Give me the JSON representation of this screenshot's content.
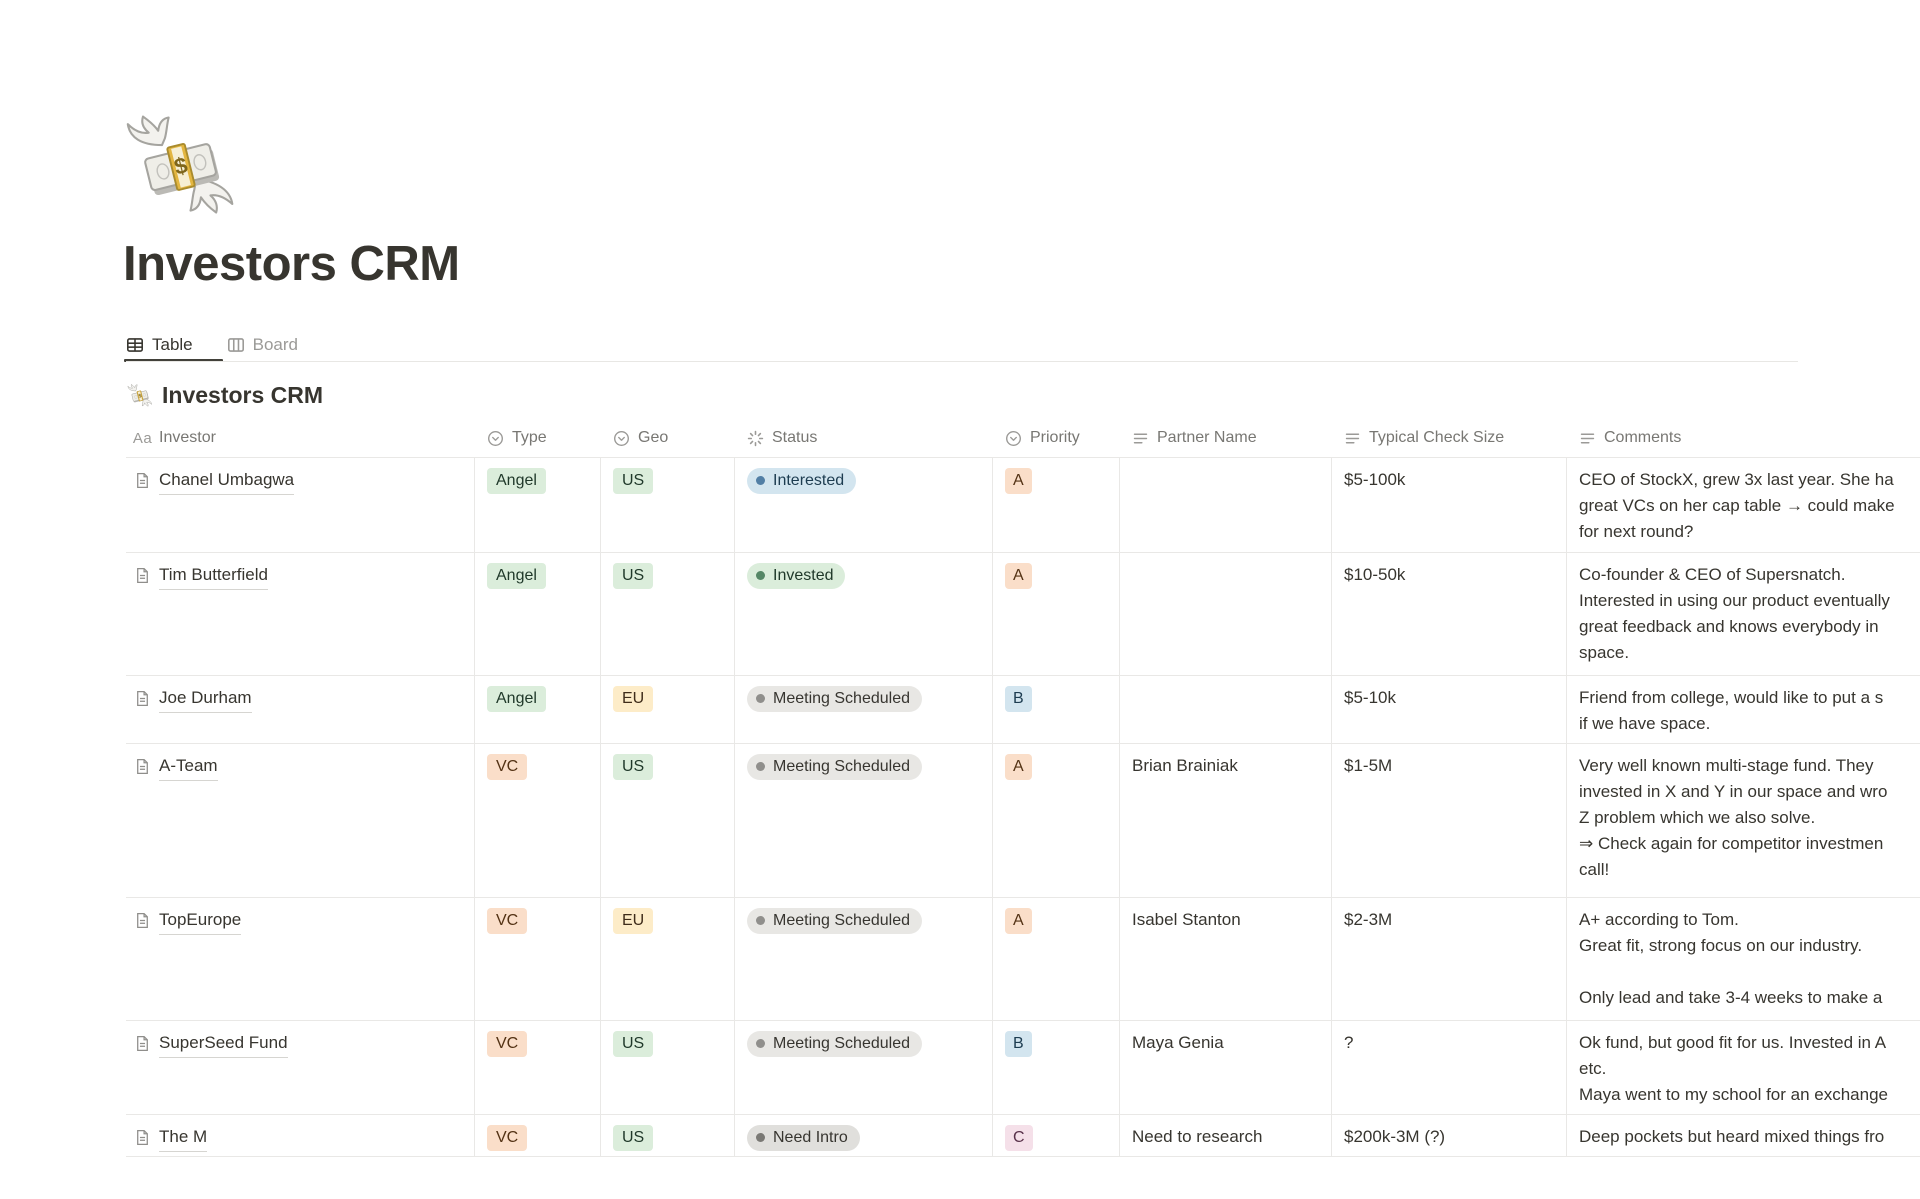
{
  "page": {
    "icon": "money-with-wings-emoji",
    "title": "Investors CRM"
  },
  "view_tabs": [
    {
      "label": "Table",
      "icon": "table-icon",
      "active": true
    },
    {
      "label": "Board",
      "icon": "board-icon",
      "active": false
    }
  ],
  "collection": {
    "icon": "money-with-wings-emoji",
    "title": "Investors CRM"
  },
  "table": {
    "columns": [
      {
        "label": "Investor",
        "icon": "title-icon"
      },
      {
        "label": "Type",
        "icon": "select-icon"
      },
      {
        "label": "Geo",
        "icon": "select-icon"
      },
      {
        "label": "Status",
        "icon": "status-icon"
      },
      {
        "label": "Priority",
        "icon": "select-icon"
      },
      {
        "label": "Partner Name",
        "icon": "text-icon"
      },
      {
        "label": "Typical Check Size",
        "icon": "text-icon"
      },
      {
        "label": "Comments",
        "icon": "text-icon"
      }
    ],
    "rows": [
      {
        "investor": "Chanel Umbagwa",
        "has_page_icon": false,
        "type": {
          "label": "Angel",
          "color": "green"
        },
        "geo": {
          "label": "US",
          "color": "green"
        },
        "status": {
          "label": "Interested",
          "color": "blue"
        },
        "priority": {
          "label": "A",
          "color": "orange"
        },
        "partner": "",
        "check_size": "$5-100k",
        "comments": "CEO of StockX, grew 3x last year. She ha\ngreat VCs on her cap table → could make\nfor next round?"
      },
      {
        "investor": "Tim Butterfield",
        "has_page_icon": false,
        "type": {
          "label": "Angel",
          "color": "green"
        },
        "geo": {
          "label": "US",
          "color": "green"
        },
        "status": {
          "label": "Invested",
          "color": "green"
        },
        "priority": {
          "label": "A",
          "color": "orange"
        },
        "partner": "",
        "check_size": "$10-50k",
        "comments": "Co-founder & CEO of Supersnatch.\nInterested in using our product eventually\ngreat feedback and knows everybody in\nspace."
      },
      {
        "investor": "Joe Durham",
        "has_page_icon": false,
        "type": {
          "label": "Angel",
          "color": "green"
        },
        "geo": {
          "label": "EU",
          "color": "yellow"
        },
        "status": {
          "label": "Meeting Scheduled",
          "color": "gray"
        },
        "priority": {
          "label": "B",
          "color": "blue"
        },
        "partner": "",
        "check_size": "$5-10k",
        "comments": "Friend from college, would like to put a s\nif we have space."
      },
      {
        "investor": "A-Team",
        "has_page_icon": true,
        "type": {
          "label": "VC",
          "color": "orange"
        },
        "geo": {
          "label": "US",
          "color": "green"
        },
        "status": {
          "label": "Meeting Scheduled",
          "color": "gray"
        },
        "priority": {
          "label": "A",
          "color": "orange"
        },
        "partner": "Brian Brainiak",
        "check_size": "$1-5M",
        "comments": "Very well known multi-stage fund. They\ninvested in X and Y in our space and wro\nZ problem which we also solve.\n⇒ Check again for competitor investmen\ncall!"
      },
      {
        "investor": "TopEurope",
        "has_page_icon": false,
        "type": {
          "label": "VC",
          "color": "orange"
        },
        "geo": {
          "label": "EU",
          "color": "yellow"
        },
        "status": {
          "label": "Meeting Scheduled",
          "color": "gray"
        },
        "priority": {
          "label": "A",
          "color": "orange"
        },
        "partner": "Isabel Stanton",
        "check_size": "$2-3M",
        "comments": "A+ according to Tom.\nGreat fit, strong focus on our industry.\n\nOnly lead and take 3-4 weeks to make a"
      },
      {
        "investor": "SuperSeed Fund",
        "has_page_icon": false,
        "type": {
          "label": "VC",
          "color": "orange"
        },
        "geo": {
          "label": "US",
          "color": "green"
        },
        "status": {
          "label": "Meeting Scheduled",
          "color": "gray"
        },
        "priority": {
          "label": "B",
          "color": "blue"
        },
        "partner": "Maya Genia",
        "check_size": "?",
        "comments": "Ok fund, but good fit for us. Invested in A\netc.\nMaya went to my school for an exchange"
      },
      {
        "investor": "The M",
        "has_page_icon": false,
        "type": {
          "label": "VC",
          "color": "orange"
        },
        "geo": {
          "label": "US",
          "color": "green"
        },
        "status": {
          "label": "Need Intro",
          "color": "gray-dark"
        },
        "priority": {
          "label": "C",
          "color": "pink"
        },
        "partner": "Need to research",
        "check_size": "$200k-3M (?)",
        "comments": "Deep pockets but heard mixed things fro\nfounders. Should consider if need be"
      }
    ]
  },
  "tag_colors": {
    "green": {
      "bg": "#DBEDDB",
      "text": "#1F3829"
    },
    "yellow": {
      "bg": "#FDECC8",
      "text": "#3F2C1A"
    },
    "orange": {
      "bg": "#FADEC9",
      "text": "#533214"
    },
    "blue": {
      "bg": "#D3E5EF",
      "text": "#1D3C50"
    },
    "pink": {
      "bg": "#F5E0E9",
      "text": "#59314A"
    }
  },
  "status_colors": {
    "blue": {
      "bg": "#D3E5EF",
      "text": "#1D3C50",
      "dot": "#527FA5"
    },
    "green": {
      "bg": "#DBEDDB",
      "text": "#1F3829",
      "dot": "#558766"
    },
    "gray": {
      "bg": "#E8E7E4",
      "text": "#373530",
      "dot": "#908F8C"
    },
    "gray-dark": {
      "bg": "#E0DFDC",
      "text": "#373530",
      "dot": "#7A7975"
    }
  }
}
